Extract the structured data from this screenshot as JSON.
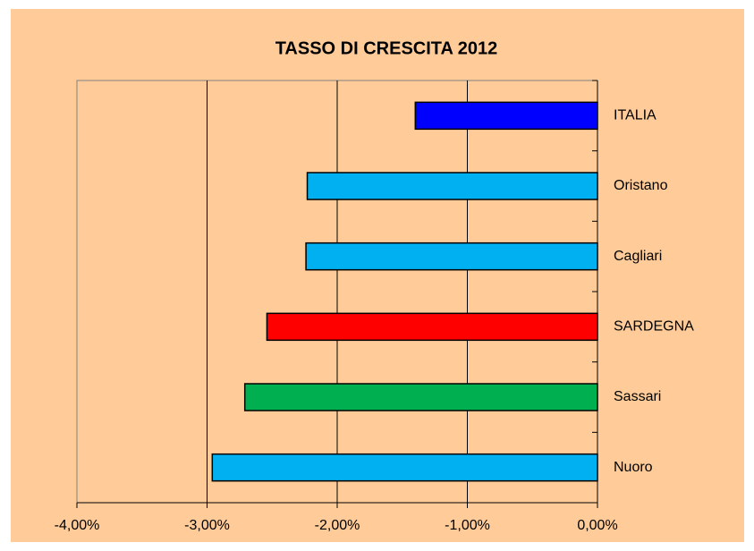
{
  "chart_data": {
    "type": "barh",
    "title": "TASSO DI CRESCITA 2012",
    "categories": [
      "ITALIA",
      "Oristano",
      "Cagliari",
      "SARDEGNA",
      "Sassari",
      "Nuoro"
    ],
    "values": [
      -1.4,
      -2.23,
      -2.24,
      -2.54,
      -2.71,
      -2.96
    ],
    "colors": [
      "#0000ff",
      "#00b0f0",
      "#00b0f0",
      "#ff0000",
      "#00b050",
      "#00b0f0"
    ],
    "xlim": [
      -4,
      0
    ],
    "xticks": [
      {
        "value": -4,
        "label": "-4,00%"
      },
      {
        "value": -3,
        "label": "-3,00%"
      },
      {
        "value": -2,
        "label": "-2,00%"
      },
      {
        "value": -1,
        "label": "-1,00%"
      },
      {
        "value": 0,
        "label": "0,00%"
      }
    ],
    "grid": true
  }
}
